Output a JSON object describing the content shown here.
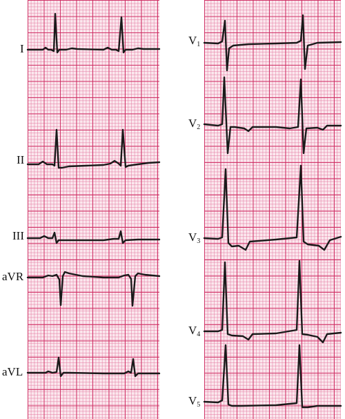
{
  "figure": {
    "type": "12-lead ECG strips",
    "grid_color": "#e0457a",
    "paper_color": "#fbe8ee",
    "trace_color": "#1a1a1a"
  },
  "left_column": {
    "leads": [
      {
        "name": "I"
      },
      {
        "name": "II"
      },
      {
        "name": "III"
      },
      {
        "name": "aVR"
      },
      {
        "name": "aVL"
      }
    ]
  },
  "right_column": {
    "leads": [
      {
        "name": "V",
        "sub": "1"
      },
      {
        "name": "V",
        "sub": "2"
      },
      {
        "name": "V",
        "sub": "3"
      },
      {
        "name": "V",
        "sub": "4"
      },
      {
        "name": "V",
        "sub": "5"
      }
    ]
  }
}
